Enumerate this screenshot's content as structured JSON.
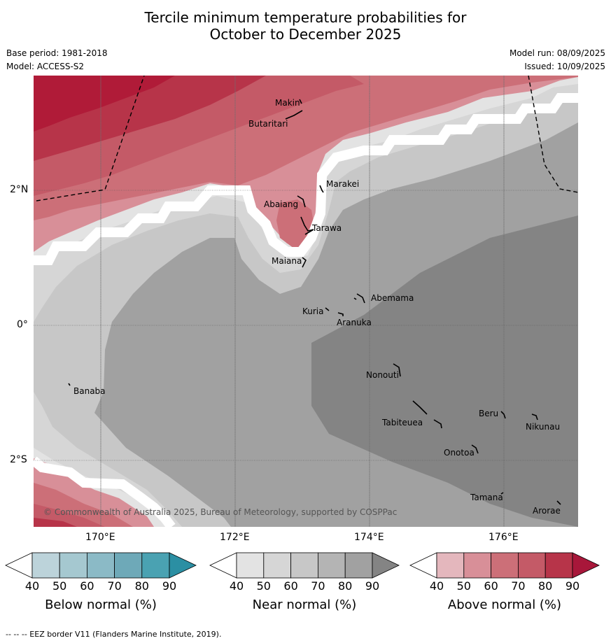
{
  "title_line1": "Tercile minimum temperature probabilities for",
  "title_line2": "October to December 2025",
  "base_period": "Base period: 1981-2018",
  "model": "Model: ACCESS-S2",
  "model_run": "Model run: 08/09/2025",
  "issued": "Issued: 10/09/2025",
  "lat_labels": [
    "2°N",
    "0°",
    "2°S"
  ],
  "lon_labels": [
    "170°E",
    "172°E",
    "174°E",
    "176°E"
  ],
  "places": [
    "Makin",
    "Butaritari",
    "Marakei",
    "Abaiang",
    "Tarawa",
    "Maiana",
    "Abemama",
    "Kuria",
    "Aranuka",
    "Banaba",
    "Nonouti",
    "Beru",
    "Tabiteuea",
    "Nikunau",
    "Onotoa",
    "Tamana",
    "Arorae"
  ],
  "copyright": "© Commonwealth of Australia 2025, Bureau of Meteorology, supported by COSPPac",
  "colorbars": [
    {
      "label": "Below normal (%)",
      "ticks": [
        "40",
        "50",
        "60",
        "70",
        "80",
        "90"
      ],
      "colors": [
        "#ffffff",
        "#bcd3da",
        "#a5c8d0",
        "#8bbac6",
        "#6ea9b8",
        "#4aa2b2",
        "#2b8fa3"
      ]
    },
    {
      "label": "Near normal (%)",
      "ticks": [
        "40",
        "50",
        "60",
        "70",
        "80",
        "90"
      ],
      "colors": [
        "#ffffff",
        "#e3e3e3",
        "#d6d6d6",
        "#c7c7c7",
        "#b4b4b4",
        "#a1a1a1",
        "#848484"
      ]
    },
    {
      "label": "Above normal (%)",
      "ticks": [
        "40",
        "50",
        "60",
        "70",
        "80",
        "90"
      ],
      "colors": [
        "#ffffff",
        "#e4b7bd",
        "#d88f98",
        "#cc6f78",
        "#c45a67",
        "#b73449",
        "#a8173a"
      ]
    }
  ],
  "footer": "--  --  -- EEZ border V11 (Flanders Marine Institute, 2019).",
  "map_colors": {
    "above_90": "#b01b38",
    "above_80": "#b73449",
    "above_70": "#c45a67",
    "above_60": "#cc6f78",
    "above_50": "#d88f98",
    "near_50": "#e3e3e3",
    "near_55": "#d6d6d6",
    "near_60": "#c7c7c7",
    "near_70": "#a1a1a1",
    "near_80": "#848484"
  }
}
